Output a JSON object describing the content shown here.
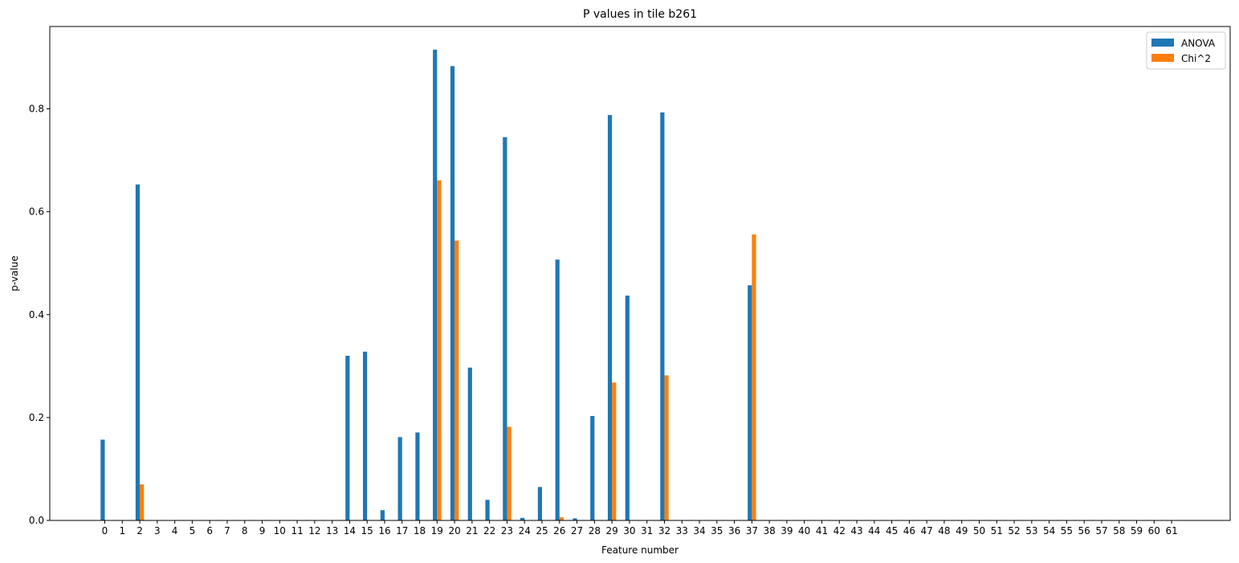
{
  "chart_data": {
    "type": "bar",
    "title": "P values in tile b261",
    "xlabel": "Feature number",
    "ylabel": "p-value",
    "ylim": [
      0,
      0.96
    ],
    "yticks": [
      0.0,
      0.2,
      0.4,
      0.6,
      0.8
    ],
    "ytick_labels": [
      "0.0",
      "0.2",
      "0.4",
      "0.6",
      "0.8"
    ],
    "categories": [
      "0",
      "1",
      "2",
      "3",
      "4",
      "5",
      "6",
      "7",
      "8",
      "9",
      "10",
      "11",
      "12",
      "13",
      "14",
      "15",
      "16",
      "17",
      "18",
      "19",
      "20",
      "21",
      "22",
      "23",
      "24",
      "25",
      "26",
      "27",
      "28",
      "29",
      "30",
      "31",
      "32",
      "33",
      "34",
      "35",
      "36",
      "37",
      "38",
      "39",
      "40",
      "41",
      "42",
      "43",
      "44",
      "45",
      "46",
      "47",
      "48",
      "49",
      "50",
      "51",
      "52",
      "53",
      "54",
      "55",
      "56",
      "57",
      "58",
      "59",
      "60",
      "61"
    ],
    "legend_position": "top-right",
    "grid": false,
    "series": [
      {
        "name": "ANOVA",
        "color": "#1f77b4",
        "values": [
          0.157,
          0,
          0.653,
          0,
          0,
          0,
          0,
          0,
          0,
          0,
          0,
          0,
          0,
          0,
          0.32,
          0.328,
          0.02,
          0.162,
          0.171,
          0.915,
          0.883,
          0.297,
          0.04,
          0.745,
          0.005,
          0.065,
          0.507,
          0.004,
          0.203,
          0.788,
          0.437,
          0,
          0.793,
          0,
          0,
          0,
          0,
          0.457,
          0,
          0,
          0,
          0,
          0,
          0,
          0,
          0,
          0,
          0,
          0,
          0,
          0,
          0,
          0,
          0,
          0,
          0,
          0,
          0,
          0,
          0,
          0,
          0
        ]
      },
      {
        "name": "Chi^2",
        "color": "#ff7f0e",
        "values": [
          0,
          0,
          0.07,
          0,
          0,
          0,
          0,
          0,
          0,
          0,
          0,
          0,
          0,
          0,
          0,
          0,
          0,
          0,
          0,
          0.661,
          0.544,
          0,
          0,
          0.182,
          0,
          0,
          0.006,
          0,
          0,
          0.268,
          0,
          0,
          0.282,
          0,
          0,
          0,
          0,
          0.556,
          0,
          0,
          0,
          0,
          0,
          0,
          0,
          0,
          0,
          0,
          0,
          0,
          0,
          0,
          0,
          0,
          0,
          0,
          0,
          0,
          0,
          0,
          0,
          0
        ]
      }
    ]
  }
}
